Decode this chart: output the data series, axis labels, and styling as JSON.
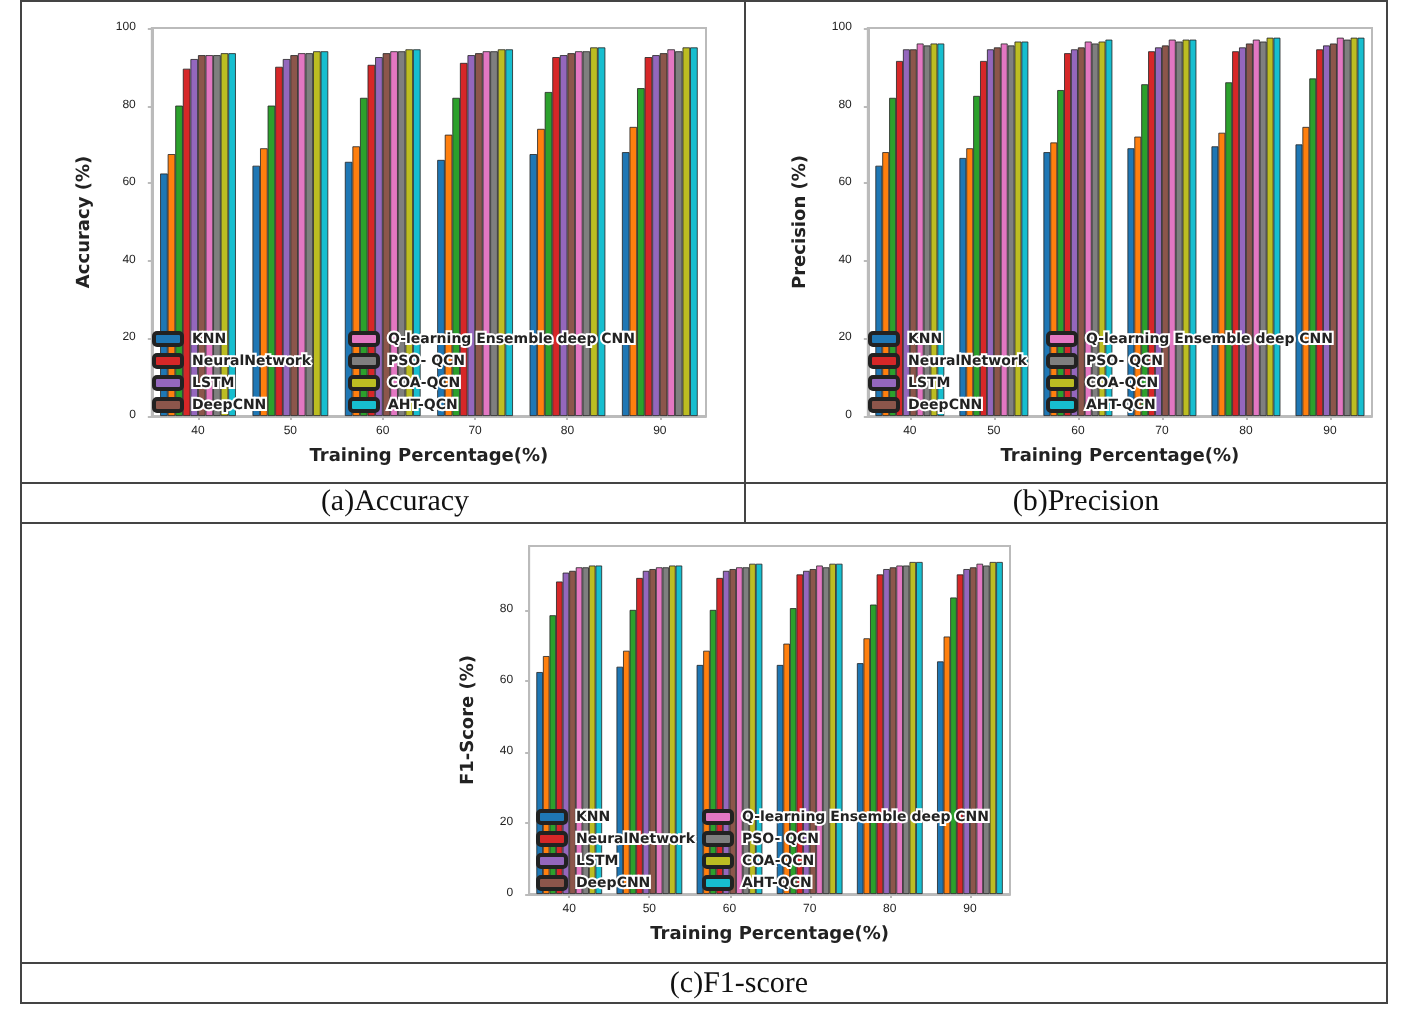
{
  "chart_data": [
    {
      "type": "bar",
      "xlabel": "Training Percentage(%)",
      "ylabel": "Accuracy (%)",
      "annotations": [
        "(a)Accuracy"
      ],
      "categories": [
        "40",
        "50",
        "60",
        "70",
        "80",
        "90"
      ],
      "ylim": [
        0,
        100
      ],
      "yticks": [
        0,
        20,
        40,
        60,
        80,
        100
      ],
      "grid": false,
      "legend": "bottom",
      "series": [
        {
          "name": "KNN",
          "color": "#1f77b4",
          "values": [
            62.5,
            64.5,
            65.5,
            66,
            67.5,
            68
          ]
        },
        {
          "color": "#ff7f0e",
          "values": [
            67.5,
            69,
            69.5,
            72.5,
            74,
            74.5
          ]
        },
        {
          "color": "#2ca02c",
          "values": [
            80,
            80,
            82,
            82,
            83.5,
            84.5
          ]
        },
        {
          "name": "NeuralNetwork",
          "color": "#d62728",
          "values": [
            89.5,
            90,
            90.5,
            91,
            92.5,
            92.5
          ]
        },
        {
          "name": "LSTM",
          "color": "#9467bd",
          "values": [
            92,
            92,
            92.5,
            93,
            93,
            93
          ]
        },
        {
          "name": "DeepCNN",
          "color": "#8c564b",
          "values": [
            93,
            93,
            93.5,
            93.5,
            93.5,
            93.5
          ]
        },
        {
          "name": "Q-learning Ensemble deep CNN",
          "color": "#e377c2",
          "values": [
            93,
            93.5,
            94,
            94,
            94,
            94.5
          ]
        },
        {
          "name": "PSO- QCN",
          "color": "#7f7f7f",
          "values": [
            93,
            93.5,
            94,
            94,
            94,
            94
          ]
        },
        {
          "name": "COA-QCN",
          "color": "#bcbd22",
          "values": [
            93.5,
            94,
            94.5,
            94.5,
            95,
            95
          ]
        },
        {
          "name": "AHT-QCN",
          "color": "#17becf",
          "values": [
            93.5,
            94,
            94.5,
            94.5,
            95,
            95
          ]
        }
      ]
    },
    {
      "type": "bar",
      "xlabel": "Training Percentage(%)",
      "ylabel": "Precision (%)",
      "annotations": [
        "(b)Precision"
      ],
      "categories": [
        "40",
        "50",
        "60",
        "70",
        "80",
        "90"
      ],
      "ylim": [
        0,
        100
      ],
      "yticks": [
        0,
        20,
        40,
        60,
        80,
        100
      ],
      "grid": false,
      "legend": "bottom",
      "series": [
        {
          "name": "KNN",
          "color": "#1f77b4",
          "values": [
            64.5,
            66.5,
            68,
            69,
            69.5,
            70
          ]
        },
        {
          "color": "#ff7f0e",
          "values": [
            68,
            69,
            70.5,
            72,
            73,
            74.5
          ]
        },
        {
          "color": "#2ca02c",
          "values": [
            82,
            82.5,
            84,
            85.5,
            86,
            87
          ]
        },
        {
          "name": "NeuralNetwork",
          "color": "#d62728",
          "values": [
            91.5,
            91.5,
            93.5,
            94,
            94,
            94.5
          ]
        },
        {
          "name": "LSTM",
          "color": "#9467bd",
          "values": [
            94.5,
            94.5,
            94.5,
            95,
            95,
            95.5
          ]
        },
        {
          "name": "DeepCNN",
          "color": "#8c564b",
          "values": [
            94.5,
            95,
            95,
            95.5,
            96,
            96
          ]
        },
        {
          "name": "Q-learning Ensemble deep CNN",
          "color": "#e377c2",
          "values": [
            96,
            96,
            96.5,
            97,
            97,
            97.5
          ]
        },
        {
          "name": "PSO- QCN",
          "color": "#7f7f7f",
          "values": [
            95.5,
            95.5,
            96,
            96.5,
            96.5,
            97
          ]
        },
        {
          "name": "COA-QCN",
          "color": "#bcbd22",
          "values": [
            96,
            96.5,
            96.5,
            97,
            97.5,
            97.5
          ]
        },
        {
          "name": "AHT-QCN",
          "color": "#17becf",
          "values": [
            96,
            96.5,
            97,
            97,
            97.5,
            97.5
          ]
        }
      ]
    },
    {
      "type": "bar",
      "xlabel": "Training Percentage(%)",
      "ylabel": "F1-Score (%)",
      "annotations": [
        "(c)F1-score"
      ],
      "categories": [
        "40",
        "50",
        "60",
        "70",
        "80",
        "90"
      ],
      "ylim": [
        0,
        98
      ],
      "yticks": [
        0,
        20,
        40,
        60,
        80
      ],
      "grid": false,
      "legend": "bottom",
      "series": [
        {
          "name": "KNN",
          "color": "#1f77b4",
          "values": [
            62.5,
            64,
            64.5,
            64.5,
            65,
            65.5
          ]
        },
        {
          "color": "#ff7f0e",
          "values": [
            67,
            68.5,
            68.5,
            70.5,
            72,
            72.5
          ]
        },
        {
          "color": "#2ca02c",
          "values": [
            78.5,
            80,
            80,
            80.5,
            81.5,
            83.5
          ]
        },
        {
          "name": "NeuralNetwork",
          "color": "#d62728",
          "values": [
            88,
            89,
            89,
            90,
            90,
            90
          ]
        },
        {
          "name": "LSTM",
          "color": "#9467bd",
          "values": [
            90.5,
            91,
            91,
            91,
            91.5,
            91.5
          ]
        },
        {
          "name": "DeepCNN",
          "color": "#8c564b",
          "values": [
            91,
            91.5,
            91.5,
            91.5,
            92,
            92
          ]
        },
        {
          "name": "Q-learning Ensemble deep CNN",
          "color": "#e377c2",
          "values": [
            92,
            92,
            92,
            92.5,
            92.5,
            93
          ]
        },
        {
          "name": "PSO- QCN",
          "color": "#7f7f7f",
          "values": [
            92,
            92,
            92,
            92,
            92.5,
            92.5
          ]
        },
        {
          "name": "COA-QCN",
          "color": "#bcbd22",
          "values": [
            92.5,
            92.5,
            93,
            93,
            93.5,
            93.5
          ]
        },
        {
          "name": "AHT-QCN",
          "color": "#17becf",
          "values": [
            92.5,
            92.5,
            93,
            93,
            93.5,
            93.5
          ]
        }
      ]
    }
  ]
}
